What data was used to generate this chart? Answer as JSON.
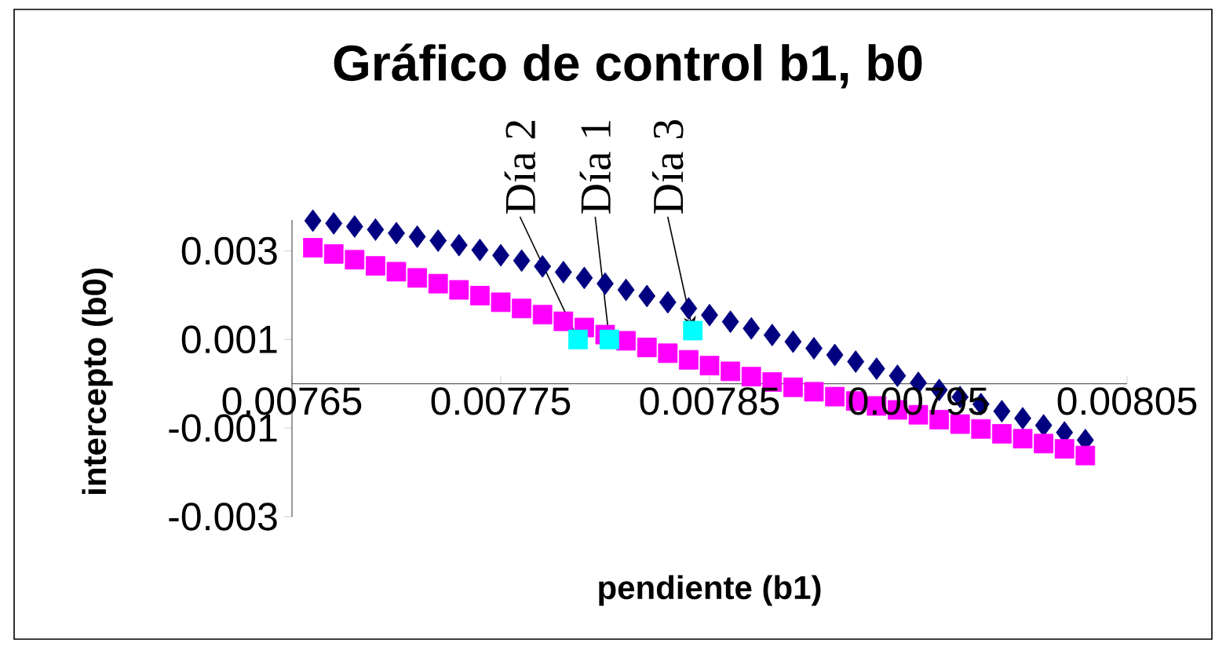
{
  "chart_data": {
    "type": "scatter",
    "title": "Gráfico de control b1, b0",
    "xlabel": "pendiente (b1)",
    "ylabel": "intercepto (b0)",
    "xlim": [
      0.00765,
      0.00805
    ],
    "xticks": [
      0.00765,
      0.00775,
      0.00785,
      0.00795,
      0.00805
    ],
    "ylim": [
      -0.003,
      0.0037
    ],
    "yticks": [
      -0.003,
      -0.001,
      0.001,
      0.003
    ],
    "series": [
      {
        "marker": "diamond",
        "color": "#000080",
        "x": [
          0.00766,
          0.00767,
          0.00768,
          0.00769,
          0.0077,
          0.00771,
          0.00772,
          0.00773,
          0.00774,
          0.00775,
          0.00776,
          0.00777,
          0.00778,
          0.00779,
          0.0078,
          0.00781,
          0.00782,
          0.00783,
          0.00784,
          0.00785,
          0.00786,
          0.00787,
          0.00788,
          0.00789,
          0.0079,
          0.00791,
          0.00792,
          0.00793,
          0.00794,
          0.00795,
          0.00796,
          0.00797,
          0.00798,
          0.00799,
          0.008,
          0.00801,
          0.00802,
          0.00803
        ],
        "values": [
          0.00368,
          0.00362,
          0.00355,
          0.00348,
          0.0034,
          0.00332,
          0.00323,
          0.00313,
          0.00302,
          0.0029,
          0.00278,
          0.00265,
          0.00252,
          0.00239,
          0.00226,
          0.00212,
          0.00198,
          0.00184,
          0.0017,
          0.00155,
          0.0014,
          0.00125,
          0.0011,
          0.00095,
          0.0008,
          0.00065,
          0.0005,
          0.00034,
          0.00018,
          2e-05,
          -0.00014,
          -0.0003,
          -0.00046,
          -0.00062,
          -0.00078,
          -0.00094,
          -0.0011,
          -0.00127
        ]
      },
      {
        "marker": "square",
        "color": "#ff00ff",
        "x": [
          0.00766,
          0.00767,
          0.00768,
          0.00769,
          0.0077,
          0.00771,
          0.00772,
          0.00773,
          0.00774,
          0.00775,
          0.00776,
          0.00777,
          0.00778,
          0.00779,
          0.0078,
          0.00781,
          0.00782,
          0.00783,
          0.00784,
          0.00785,
          0.00786,
          0.00787,
          0.00788,
          0.00789,
          0.0079,
          0.00791,
          0.00792,
          0.00793,
          0.00794,
          0.00795,
          0.00796,
          0.00797,
          0.00798,
          0.00799,
          0.008,
          0.00801,
          0.00802,
          0.00803
        ],
        "values": [
          0.00307,
          0.00293,
          0.0028,
          0.00266,
          0.00253,
          0.00239,
          0.00226,
          0.00212,
          0.00199,
          0.00184,
          0.0017,
          0.00156,
          0.00141,
          0.00127,
          0.00111,
          0.00097,
          0.00082,
          0.00069,
          0.00054,
          0.00041,
          0.00028,
          0.00016,
          4e-05,
          -8e-05,
          -0.00018,
          -0.00029,
          -0.00039,
          -0.0005,
          -0.00059,
          -0.0007,
          -0.00081,
          -0.00091,
          -0.00102,
          -0.00113,
          -0.00124,
          -0.00135,
          -0.00147,
          -0.00162
        ]
      },
      {
        "marker": "square",
        "color": "#00ffff",
        "x": [
          0.007787,
          0.007802,
          0.007842
        ],
        "values": [
          0.001,
          0.001,
          0.0012
        ]
      }
    ],
    "annotations": [
      {
        "text": "Día 2",
        "x": 0.007787,
        "y": 0.001
      },
      {
        "text": "Día 1",
        "x": 0.007802,
        "y": 0.001
      },
      {
        "text": "Día 3",
        "x": 0.007842,
        "y": 0.0012
      }
    ]
  }
}
